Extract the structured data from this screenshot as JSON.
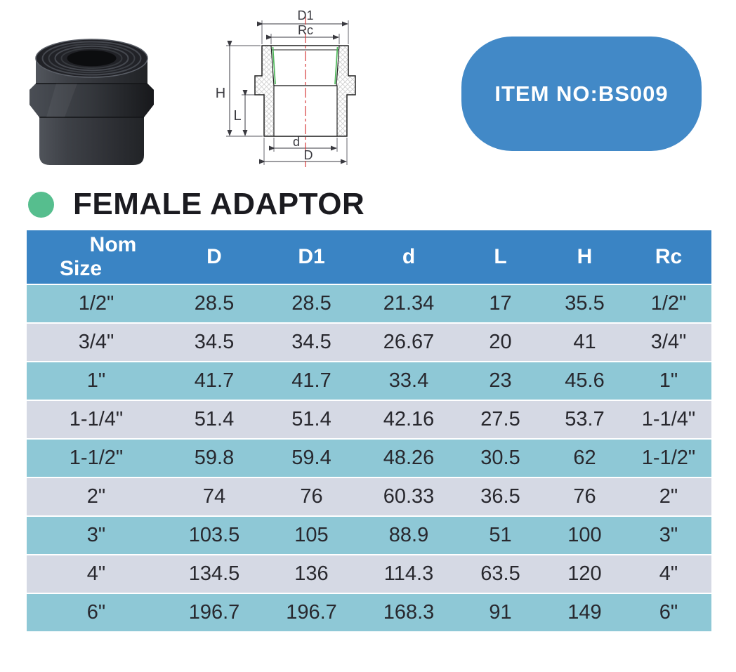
{
  "badge": {
    "label": "ITEM NO:BS009",
    "bg_color": "#4289C7"
  },
  "title": {
    "text": "FEMALE ADAPTOR",
    "bullet_color": "#56BE8E"
  },
  "diagram": {
    "labels": {
      "d1": "D1",
      "rc": "Rc",
      "h": "H",
      "l": "L",
      "d_inner": "d",
      "d_outer": "D"
    },
    "colors": {
      "centerline": "#D63A3A",
      "thread_seal": "#4CB858",
      "hatch": "#CFCFCF",
      "outline": "#222222"
    }
  },
  "table": {
    "columns": [
      "Nom\nSize",
      "D",
      "D1",
      "d",
      "L",
      "H",
      "Rc"
    ],
    "rows": [
      [
        "1/2\"",
        "28.5",
        "28.5",
        "21.34",
        "17",
        "35.5",
        "1/2\""
      ],
      [
        "3/4\"",
        "34.5",
        "34.5",
        "26.67",
        "20",
        "41",
        "3/4\""
      ],
      [
        "1\"",
        "41.7",
        "41.7",
        "33.4",
        "23",
        "45.6",
        "1\""
      ],
      [
        "1-1/4\"",
        "51.4",
        "51.4",
        "42.16",
        "27.5",
        "53.7",
        "1-1/4\""
      ],
      [
        "1-1/2\"",
        "59.8",
        "59.4",
        "48.26",
        "30.5",
        "62",
        "1-1/2\""
      ],
      [
        "2\"",
        "74",
        "76",
        "60.33",
        "36.5",
        "76",
        "2\""
      ],
      [
        "3\"",
        "103.5",
        "105",
        "88.9",
        "51",
        "100",
        "3\""
      ],
      [
        "4\"",
        "134.5",
        "136",
        "114.3",
        "63.5",
        "120",
        "4\""
      ],
      [
        "6\"",
        "196.7",
        "196.7",
        "168.3",
        "91",
        "149",
        "6\""
      ]
    ],
    "colors": {
      "header_bg": "#3A84C4",
      "row_odd": "#8EC8D6",
      "row_even": "#D5D9E4",
      "header_text": "#FFFFFF",
      "cell_text": "#28282E"
    }
  }
}
